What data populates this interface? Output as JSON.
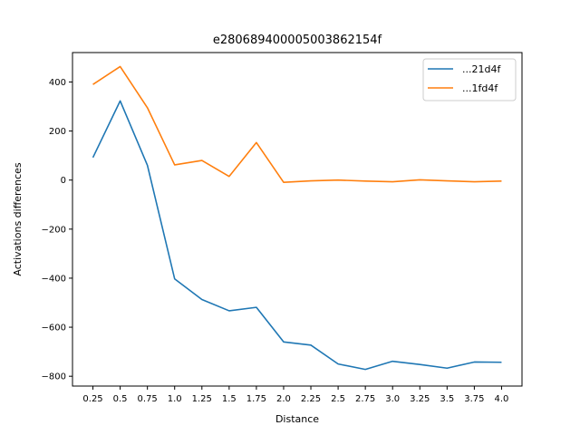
{
  "chart_data": {
    "type": "line",
    "title": "e280689400005003862154f",
    "xlabel": "Distance",
    "ylabel": "Activations differences",
    "x": [
      0.25,
      0.5,
      0.75,
      1.0,
      1.25,
      1.5,
      1.75,
      2.0,
      2.25,
      2.5,
      2.75,
      3.0,
      3.25,
      3.5,
      3.75,
      4.0
    ],
    "x_tick_labels": [
      "0.25",
      "0.5",
      "0.75",
      "1.0",
      "1.25",
      "1.5",
      "1.75",
      "2.0",
      "2.25",
      "2.5",
      "2.75",
      "3.0",
      "3.25",
      "3.5",
      "3.75",
      "4.0"
    ],
    "y_ticks": [
      400,
      200,
      0,
      -200,
      -400,
      -600,
      -800
    ],
    "y_tick_labels": [
      "400",
      "200",
      "0",
      "−200",
      "−400",
      "−600",
      "−800"
    ],
    "ylim": [
      -840,
      520
    ],
    "grid": false,
    "legend_position": "top-right",
    "series": [
      {
        "name": "...21d4f",
        "color": "#1f77b4",
        "values": [
          92,
          323,
          60,
          -403,
          -487,
          -533,
          -519,
          -660,
          -673,
          -750,
          -772,
          -739,
          -752,
          -767,
          -742,
          -743
        ]
      },
      {
        "name": "...1fd4f",
        "color": "#ff7f0e",
        "values": [
          390,
          463,
          295,
          62,
          80,
          15,
          153,
          -9,
          -3,
          0,
          -4,
          -7,
          1,
          -3,
          -7,
          -4
        ]
      }
    ]
  }
}
